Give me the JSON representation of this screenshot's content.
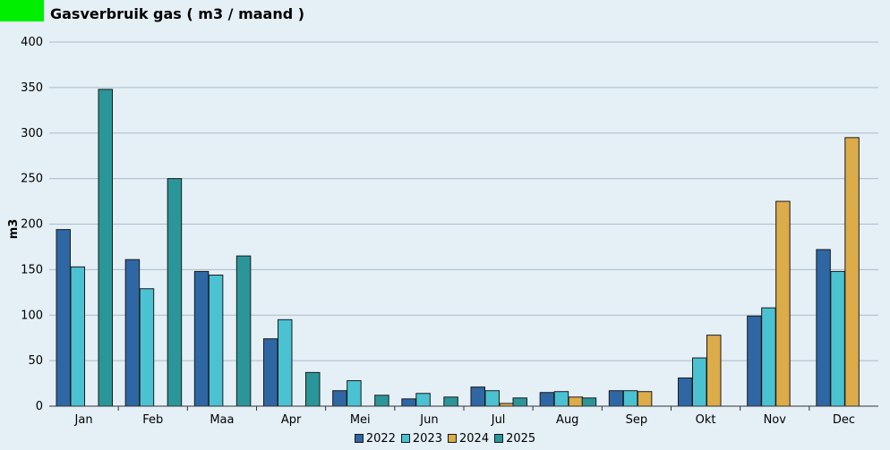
{
  "header": {
    "title": "Gasverbruik gas ( m3 / maand )",
    "accent_color": "#00ee00"
  },
  "chart_data": {
    "type": "bar",
    "title": "Gasverbruik gas ( m3 / maand )",
    "xlabel": "",
    "ylabel": "m3",
    "ylim": [
      0,
      400
    ],
    "yticks": [
      0,
      50,
      100,
      150,
      200,
      250,
      300,
      350,
      400
    ],
    "grid": true,
    "legend_position": "bottom",
    "categories": [
      "Jan",
      "Feb",
      "Maa",
      "Apr",
      "Mei",
      "Jun",
      "Jul",
      "Aug",
      "Sep",
      "Okt",
      "Nov",
      "Dec"
    ],
    "series": [
      {
        "name": "2022",
        "color": "#2e67a3",
        "values": [
          194,
          161,
          148,
          74,
          17,
          8,
          21,
          15,
          17,
          31,
          99,
          172
        ]
      },
      {
        "name": "2023",
        "color": "#4bc2d1",
        "values": [
          153,
          129,
          144,
          95,
          28,
          14,
          17,
          16,
          17,
          53,
          108,
          148
        ]
      },
      {
        "name": "2024",
        "color": "#dcab4a",
        "values": [
          null,
          null,
          null,
          null,
          null,
          null,
          3,
          10,
          16,
          78,
          225,
          295
        ]
      },
      {
        "name": "2025",
        "color": "#2a9699",
        "values": [
          348,
          250,
          165,
          37,
          12,
          10,
          9,
          9,
          null,
          null,
          null,
          null
        ]
      }
    ]
  }
}
